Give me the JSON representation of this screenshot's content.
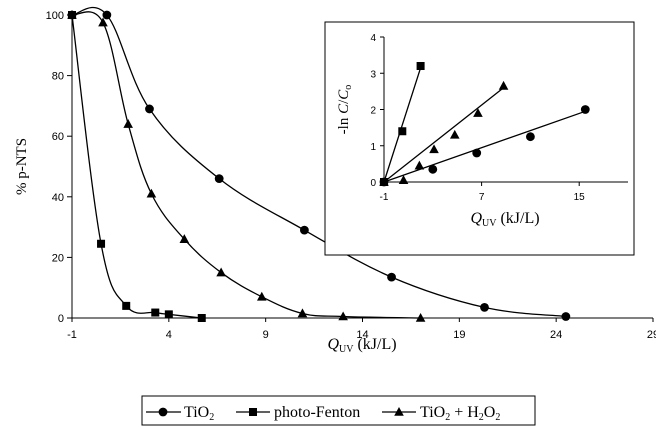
{
  "chart_data": [
    {
      "type": "line",
      "xlabel": {
        "symbol": "Q",
        "subscript": "UV",
        "unit": "(kJ/L)"
      },
      "ylabel": "% p-NTS",
      "xlim": [
        -1,
        29
      ],
      "ylim": [
        0,
        100
      ],
      "xticks": [
        -1,
        4,
        9,
        14,
        19,
        24,
        29
      ],
      "xtick_labels": [
        "-1",
        "4",
        "9",
        "14",
        "19",
        "24",
        "29"
      ],
      "yticks": [
        0,
        20,
        40,
        60,
        80,
        100
      ],
      "ytick_labels": [
        "0",
        "20",
        "40",
        "60",
        "80",
        "100"
      ],
      "grid": false,
      "legend_position": "bottom-center",
      "series": [
        {
          "name": "TiO₂",
          "marker": "circle",
          "points": [
            [
              -1,
              100
            ],
            [
              0.8,
              100
            ],
            [
              3,
              69
            ],
            [
              6.6,
              46
            ],
            [
              11,
              29
            ],
            [
              15.5,
              13.5
            ],
            [
              20.3,
              3.5
            ],
            [
              24.5,
              0.5
            ]
          ]
        },
        {
          "name": "photo-Fenton",
          "marker": "square",
          "points": [
            [
              -1,
              100
            ],
            [
              0.5,
              24.5
            ],
            [
              1.8,
              4
            ],
            [
              3.3,
              1.8
            ],
            [
              4,
              1.2
            ],
            [
              5.7,
              0
            ]
          ]
        },
        {
          "name": "TiO₂ + H₂O₂",
          "marker": "triangle",
          "points": [
            [
              -1,
              100
            ],
            [
              0.6,
              97.5
            ],
            [
              1.9,
              64
            ],
            [
              3.1,
              41
            ],
            [
              4.8,
              26
            ],
            [
              6.7,
              15
            ],
            [
              8.8,
              7
            ],
            [
              10.9,
              1.5
            ],
            [
              13,
              0.5
            ],
            [
              17,
              0
            ]
          ]
        }
      ]
    },
    {
      "type": "scatter",
      "xlabel": {
        "symbol": "Q",
        "subscript": "UV",
        "unit": "(kJ/L)"
      },
      "ylabel": {
        "prefix": "-ln ",
        "c": "C",
        "slash": "/",
        "c0": "C",
        "c0_sub": "o"
      },
      "xlim": [
        -1,
        19
      ],
      "ylim": [
        0,
        4
      ],
      "xticks": [
        -1,
        7,
        15
      ],
      "xtick_labels": [
        "-1",
        "7",
        "15"
      ],
      "yticks": [
        0,
        1,
        2,
        3,
        4
      ],
      "ytick_labels": [
        "0",
        "1",
        "2",
        "3",
        "4"
      ],
      "grid": false,
      "series": [
        {
          "name": "TiO₂",
          "marker": "circle",
          "points": [
            [
              -1,
              0
            ],
            [
              3,
              0.35
            ],
            [
              6.6,
              0.8
            ],
            [
              11,
              1.25
            ],
            [
              15.5,
              2
            ]
          ],
          "fit": [
            [
              -1,
              0
            ],
            [
              15.5,
              1.95
            ]
          ]
        },
        {
          "name": "photo-Fenton",
          "marker": "square",
          "points": [
            [
              -1,
              0
            ],
            [
              0.5,
              1.4
            ],
            [
              2,
              3.2
            ]
          ],
          "fit": [
            [
              -1,
              0
            ],
            [
              2,
              3.15
            ]
          ]
        },
        {
          "name": "TiO₂ + H₂O₂",
          "marker": "triangle",
          "points": [
            [
              -1,
              0
            ],
            [
              0.6,
              0.05
            ],
            [
              1.9,
              0.45
            ],
            [
              3.1,
              0.9
            ],
            [
              4.8,
              1.3
            ],
            [
              6.7,
              1.9
            ],
            [
              8.8,
              2.65
            ]
          ],
          "fit": [
            [
              -1,
              0
            ],
            [
              8.8,
              2.6
            ]
          ]
        }
      ]
    }
  ],
  "legend": {
    "items": [
      {
        "label": "TiO",
        "sub": "2",
        "marker": "circle"
      },
      {
        "label": "photo-Fenton",
        "marker": "square"
      },
      {
        "label": "TiO",
        "sub": "2",
        "tail": " + H",
        "sub2": "2",
        "tail2": "O",
        "sub3": "2",
        "marker": "triangle"
      }
    ]
  }
}
